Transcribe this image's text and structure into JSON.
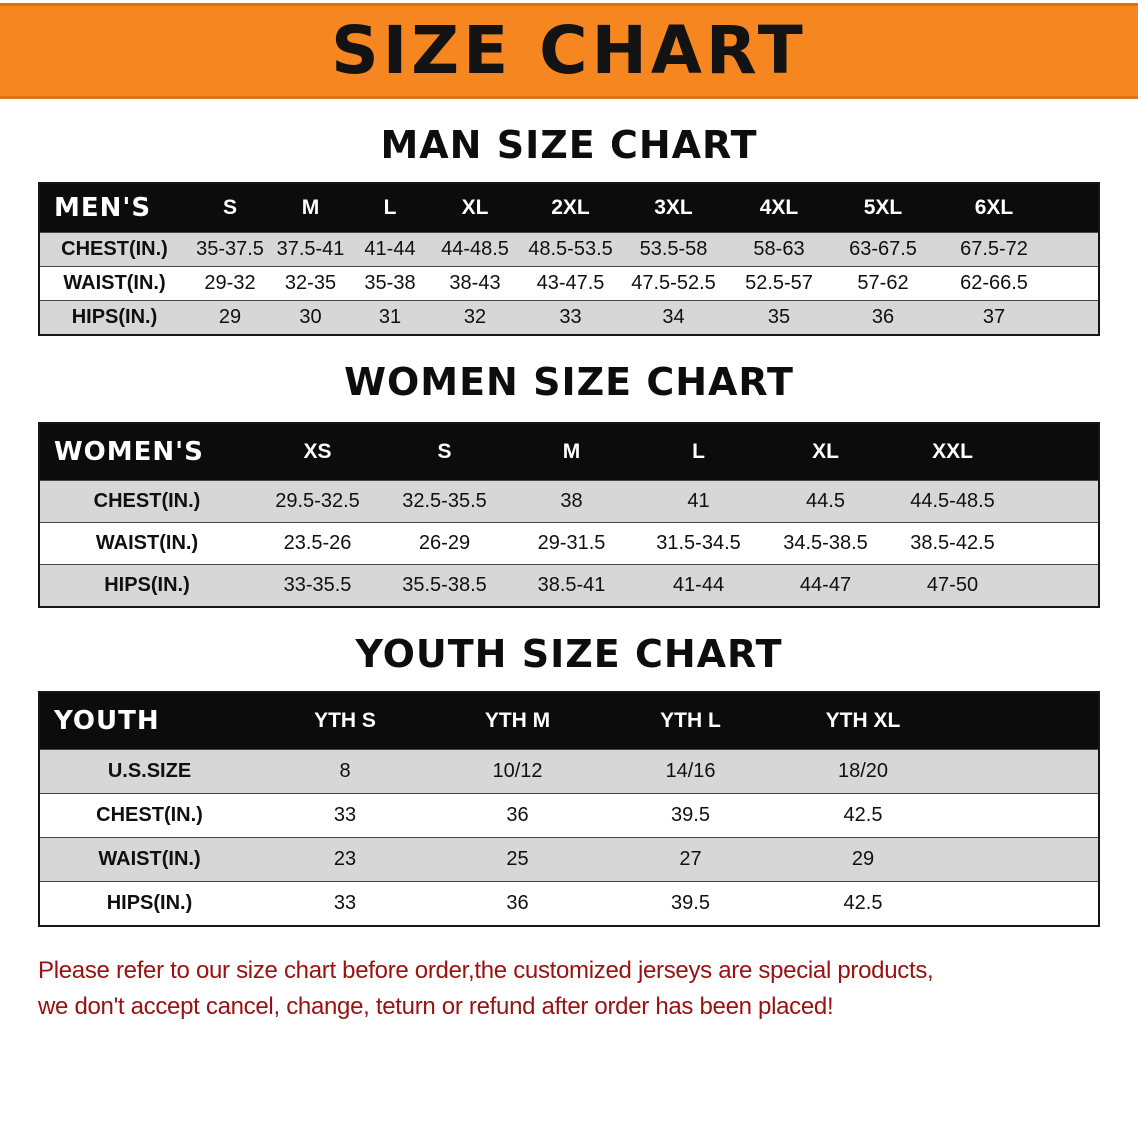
{
  "banner": {
    "title": "SIZE CHART",
    "background_color": "#f6861f"
  },
  "tables": [
    {
      "heading": "MAN SIZE CHART",
      "header_label": "MEN'S",
      "columns": [
        "S",
        "M",
        "L",
        "XL",
        "2XL",
        "3XL",
        "4XL",
        "5XL",
        "6XL"
      ],
      "rows": [
        {
          "label": "CHEST(IN.)",
          "values": [
            "35-37.5",
            "37.5-41",
            "41-44",
            "44-48.5",
            "48.5-53.5",
            "53.5-58",
            "58-63",
            "63-67.5",
            "67.5-72"
          ]
        },
        {
          "label": "WAIST(IN.)",
          "values": [
            "29-32",
            "32-35",
            "35-38",
            "38-43",
            "43-47.5",
            "47.5-52.5",
            "52.5-57",
            "57-62",
            "62-66.5"
          ]
        },
        {
          "label": "HIPS(IN.)",
          "values": [
            "29",
            "30",
            "31",
            "32",
            "33",
            "34",
            "35",
            "36",
            "37"
          ]
        }
      ]
    },
    {
      "heading": "WOMEN SIZE CHART",
      "header_label": "WOMEN'S",
      "columns": [
        "XS",
        "S",
        "M",
        "L",
        "XL",
        "XXL"
      ],
      "rows": [
        {
          "label": "CHEST(IN.)",
          "values": [
            "29.5-32.5",
            "32.5-35.5",
            "38",
            "41",
            "44.5",
            "44.5-48.5"
          ]
        },
        {
          "label": "WAIST(IN.)",
          "values": [
            "23.5-26",
            "26-29",
            "29-31.5",
            "31.5-34.5",
            "34.5-38.5",
            "38.5-42.5"
          ]
        },
        {
          "label": "HIPS(IN.)",
          "values": [
            "33-35.5",
            "35.5-38.5",
            "38.5-41",
            "41-44",
            "44-47",
            "47-50"
          ]
        }
      ]
    },
    {
      "heading": "YOUTH SIZE CHART",
      "header_label": "YOUTH",
      "columns": [
        "YTH S",
        "YTH M",
        "YTH L",
        "YTH XL"
      ],
      "rows": [
        {
          "label": "U.S.SIZE",
          "values": [
            "8",
            "10/12",
            "14/16",
            "18/20"
          ]
        },
        {
          "label": "CHEST(IN.)",
          "values": [
            "33",
            "36",
            "39.5",
            "42.5"
          ]
        },
        {
          "label": "WAIST(IN.)",
          "values": [
            "23",
            "25",
            "27",
            "29"
          ]
        },
        {
          "label": "HIPS(IN.)",
          "values": [
            "33",
            "36",
            "39.5",
            "42.5"
          ]
        }
      ]
    }
  ],
  "disclaimer": {
    "lines": [
      "Please refer to our size chart before order,the customized jerseys are special products,",
      "we don't accept cancel, change, teturn or refund after order has been placed!"
    ],
    "text_color": "#991111"
  }
}
